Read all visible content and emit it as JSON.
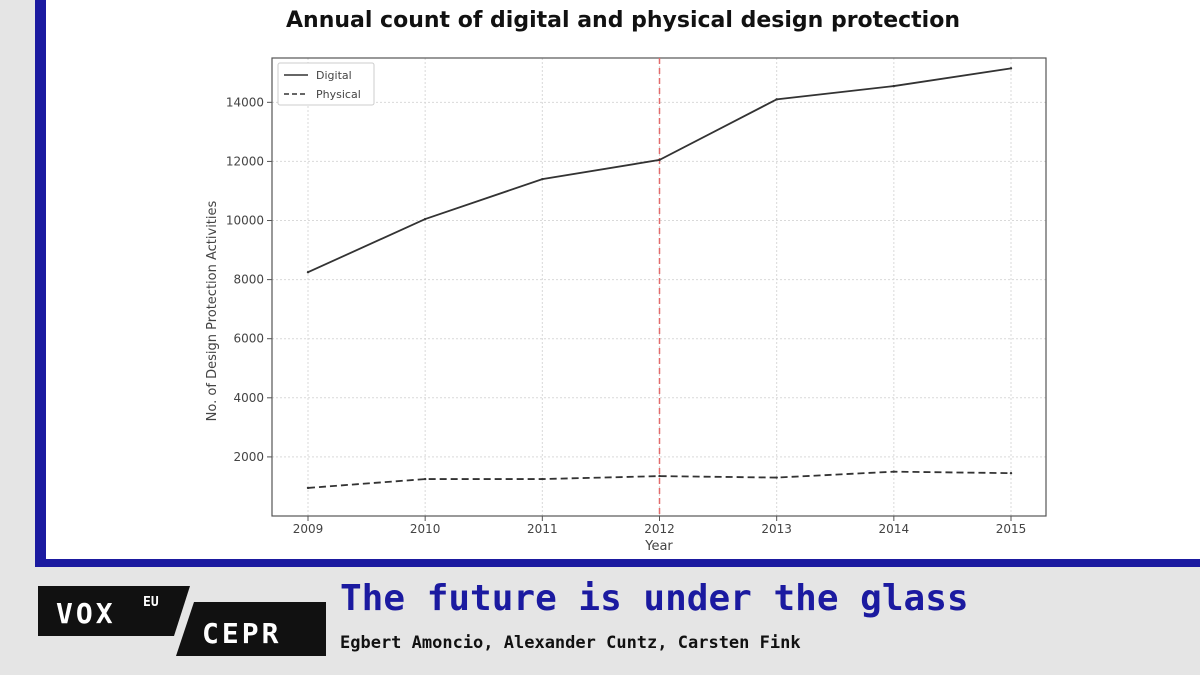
{
  "chart_data": {
    "type": "line",
    "title": "Annual count of digital and physical design protection",
    "xlabel": "Year",
    "ylabel": "No. of Design Protection Activities",
    "x": [
      2009,
      2010,
      2011,
      2012,
      2013,
      2014,
      2015
    ],
    "xlim": [
      2009,
      2015
    ],
    "ylim": [
      0,
      15500
    ],
    "yticks": [
      2000,
      4000,
      6000,
      8000,
      10000,
      12000,
      14000
    ],
    "grid": true,
    "legend_position": "top-left",
    "vline": {
      "x": 2012,
      "color": "#e26b6b",
      "style": "dashed"
    },
    "series": [
      {
        "name": "Digital",
        "style": "solid",
        "color": "#333333",
        "values": [
          8250,
          10050,
          11400,
          12050,
          14100,
          14550,
          15150
        ]
      },
      {
        "name": "Physical",
        "style": "dashed",
        "color": "#333333",
        "values": [
          950,
          1250,
          1250,
          1350,
          1300,
          1500,
          1450
        ]
      }
    ]
  },
  "footer": {
    "logo_vox": "VOX",
    "logo_eu": "EU",
    "logo_cepr": "CEPR",
    "title": "The future is under the glass",
    "authors": "Egbert Amoncio, Alexander Cuntz, Carsten Fink"
  },
  "colors": {
    "brand_blue": "#1b1aa0",
    "logo_black": "#111111"
  }
}
